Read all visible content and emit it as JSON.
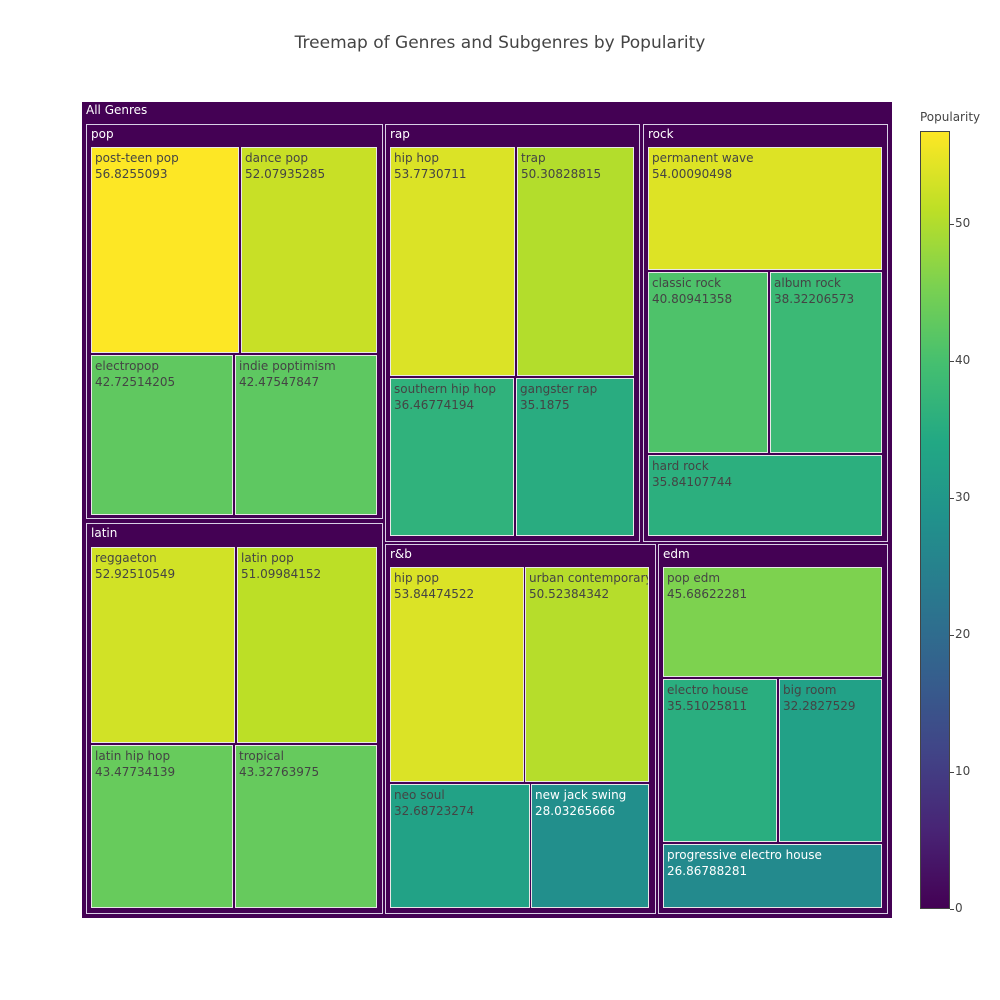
{
  "chart_data": {
    "type": "treemap",
    "title": "Treemap of Genres and Subgenres by Popularity",
    "root_label": "All Genres",
    "colorbar": {
      "title": "Popularity",
      "min": 0,
      "max": 56.8255093,
      "ticks": [
        0,
        10,
        20,
        30,
        40,
        50
      ],
      "tick_labels": [
        "0",
        "10",
        "20",
        "30",
        "40",
        "50"
      ],
      "colorscale": "viridis",
      "parent_color": "#440154"
    },
    "genres": [
      {
        "name": "pop",
        "subgenres": [
          {
            "name": "post-teen pop",
            "value_text": "56.8255093",
            "value": 56.8255093
          },
          {
            "name": "dance pop",
            "value_text": "52.07935285",
            "value": 52.07935285
          },
          {
            "name": "electropop",
            "value_text": "42.72514205",
            "value": 42.72514205
          },
          {
            "name": "indie poptimism",
            "value_text": "42.47547847",
            "value": 42.47547847
          }
        ]
      },
      {
        "name": "rap",
        "subgenres": [
          {
            "name": "hip hop",
            "value_text": "53.7730711",
            "value": 53.7730711
          },
          {
            "name": "trap",
            "value_text": "50.30828815",
            "value": 50.30828815
          },
          {
            "name": "southern hip hop",
            "value_text": "36.46774194",
            "value": 36.46774194
          },
          {
            "name": "gangster rap",
            "value_text": "35.1875",
            "value": 35.1875
          }
        ]
      },
      {
        "name": "rock",
        "subgenres": [
          {
            "name": "permanent wave",
            "value_text": "54.00090498",
            "value": 54.00090498
          },
          {
            "name": "classic rock",
            "value_text": "40.80941358",
            "value": 40.80941358
          },
          {
            "name": "album rock",
            "value_text": "38.32206573",
            "value": 38.32206573
          },
          {
            "name": "hard rock",
            "value_text": "35.84107744",
            "value": 35.84107744
          }
        ]
      },
      {
        "name": "latin",
        "subgenres": [
          {
            "name": "reggaeton",
            "value_text": "52.92510549",
            "value": 52.92510549
          },
          {
            "name": "latin pop",
            "value_text": "51.09984152",
            "value": 51.09984152
          },
          {
            "name": "latin hip hop",
            "value_text": "43.47734139",
            "value": 43.47734139
          },
          {
            "name": "tropical",
            "value_text": "43.32763975",
            "value": 43.32763975
          }
        ]
      },
      {
        "name": "r&b",
        "subgenres": [
          {
            "name": "hip pop",
            "value_text": "53.84474522",
            "value": 53.84474522
          },
          {
            "name": "urban contemporary",
            "value_text": "50.52384342",
            "value": 50.52384342
          },
          {
            "name": "neo soul",
            "value_text": "32.68723274",
            "value": 32.68723274
          },
          {
            "name": "new jack swing",
            "value_text": "28.03265666",
            "value": 28.03265666
          }
        ]
      },
      {
        "name": "edm",
        "subgenres": [
          {
            "name": "pop edm",
            "value_text": "45.68622281",
            "value": 45.68622281
          },
          {
            "name": "electro house",
            "value_text": "35.51025811",
            "value": 35.51025811
          },
          {
            "name": "big room",
            "value_text": "32.2827529",
            "value": 32.2827529
          },
          {
            "name": "progressive electro house",
            "value_text": "26.86788281",
            "value": 26.86788281
          }
        ]
      }
    ]
  }
}
